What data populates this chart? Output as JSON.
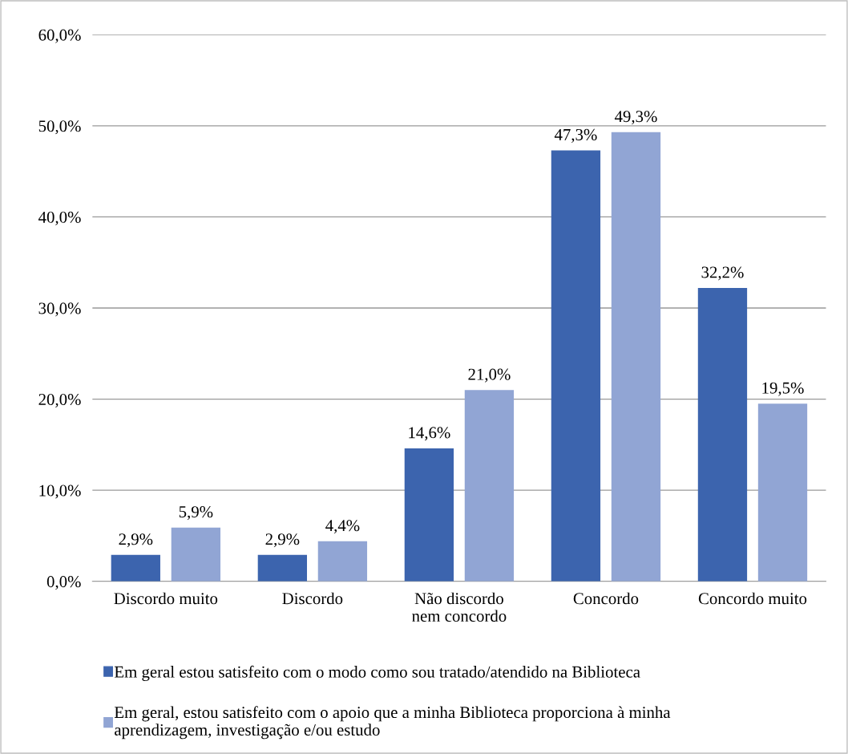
{
  "chart_data": {
    "type": "bar",
    "categories": [
      "Discordo muito",
      "Discordo",
      "Não discordo\nnem concordo",
      "Concordo",
      "Concordo muito"
    ],
    "series": [
      {
        "name": "Em geral estou satisfeito com o modo como sou tratado/atendido na Biblioteca",
        "color": "#3c64ae",
        "values": [
          2.9,
          2.9,
          14.6,
          47.3,
          32.2
        ],
        "value_labels": [
          "2,9%",
          "2,9%",
          "14,6%",
          "47,3%",
          "32,2%"
        ]
      },
      {
        "name": "Em geral, estou satisfeito com o apoio que a minha Biblioteca proporciona à minha\naprendizagem, investigação e/ou estudo",
        "color": "#91a5d4",
        "values": [
          5.9,
          4.4,
          21.0,
          49.3,
          19.5
        ],
        "value_labels": [
          "5,9%",
          "4,4%",
          "21,0%",
          "49,3%",
          "19,5%"
        ]
      }
    ],
    "ylim": [
      0,
      60
    ],
    "yticks": [
      {
        "value": 0,
        "label": "0,0%"
      },
      {
        "value": 10,
        "label": "10,0%"
      },
      {
        "value": 20,
        "label": "20,0%"
      },
      {
        "value": 30,
        "label": "30,0%"
      },
      {
        "value": 40,
        "label": "40,0%"
      },
      {
        "value": 50,
        "label": "50,0%"
      },
      {
        "value": 60,
        "label": "60,0%"
      }
    ],
    "grid": "y",
    "legend": "bottom"
  }
}
